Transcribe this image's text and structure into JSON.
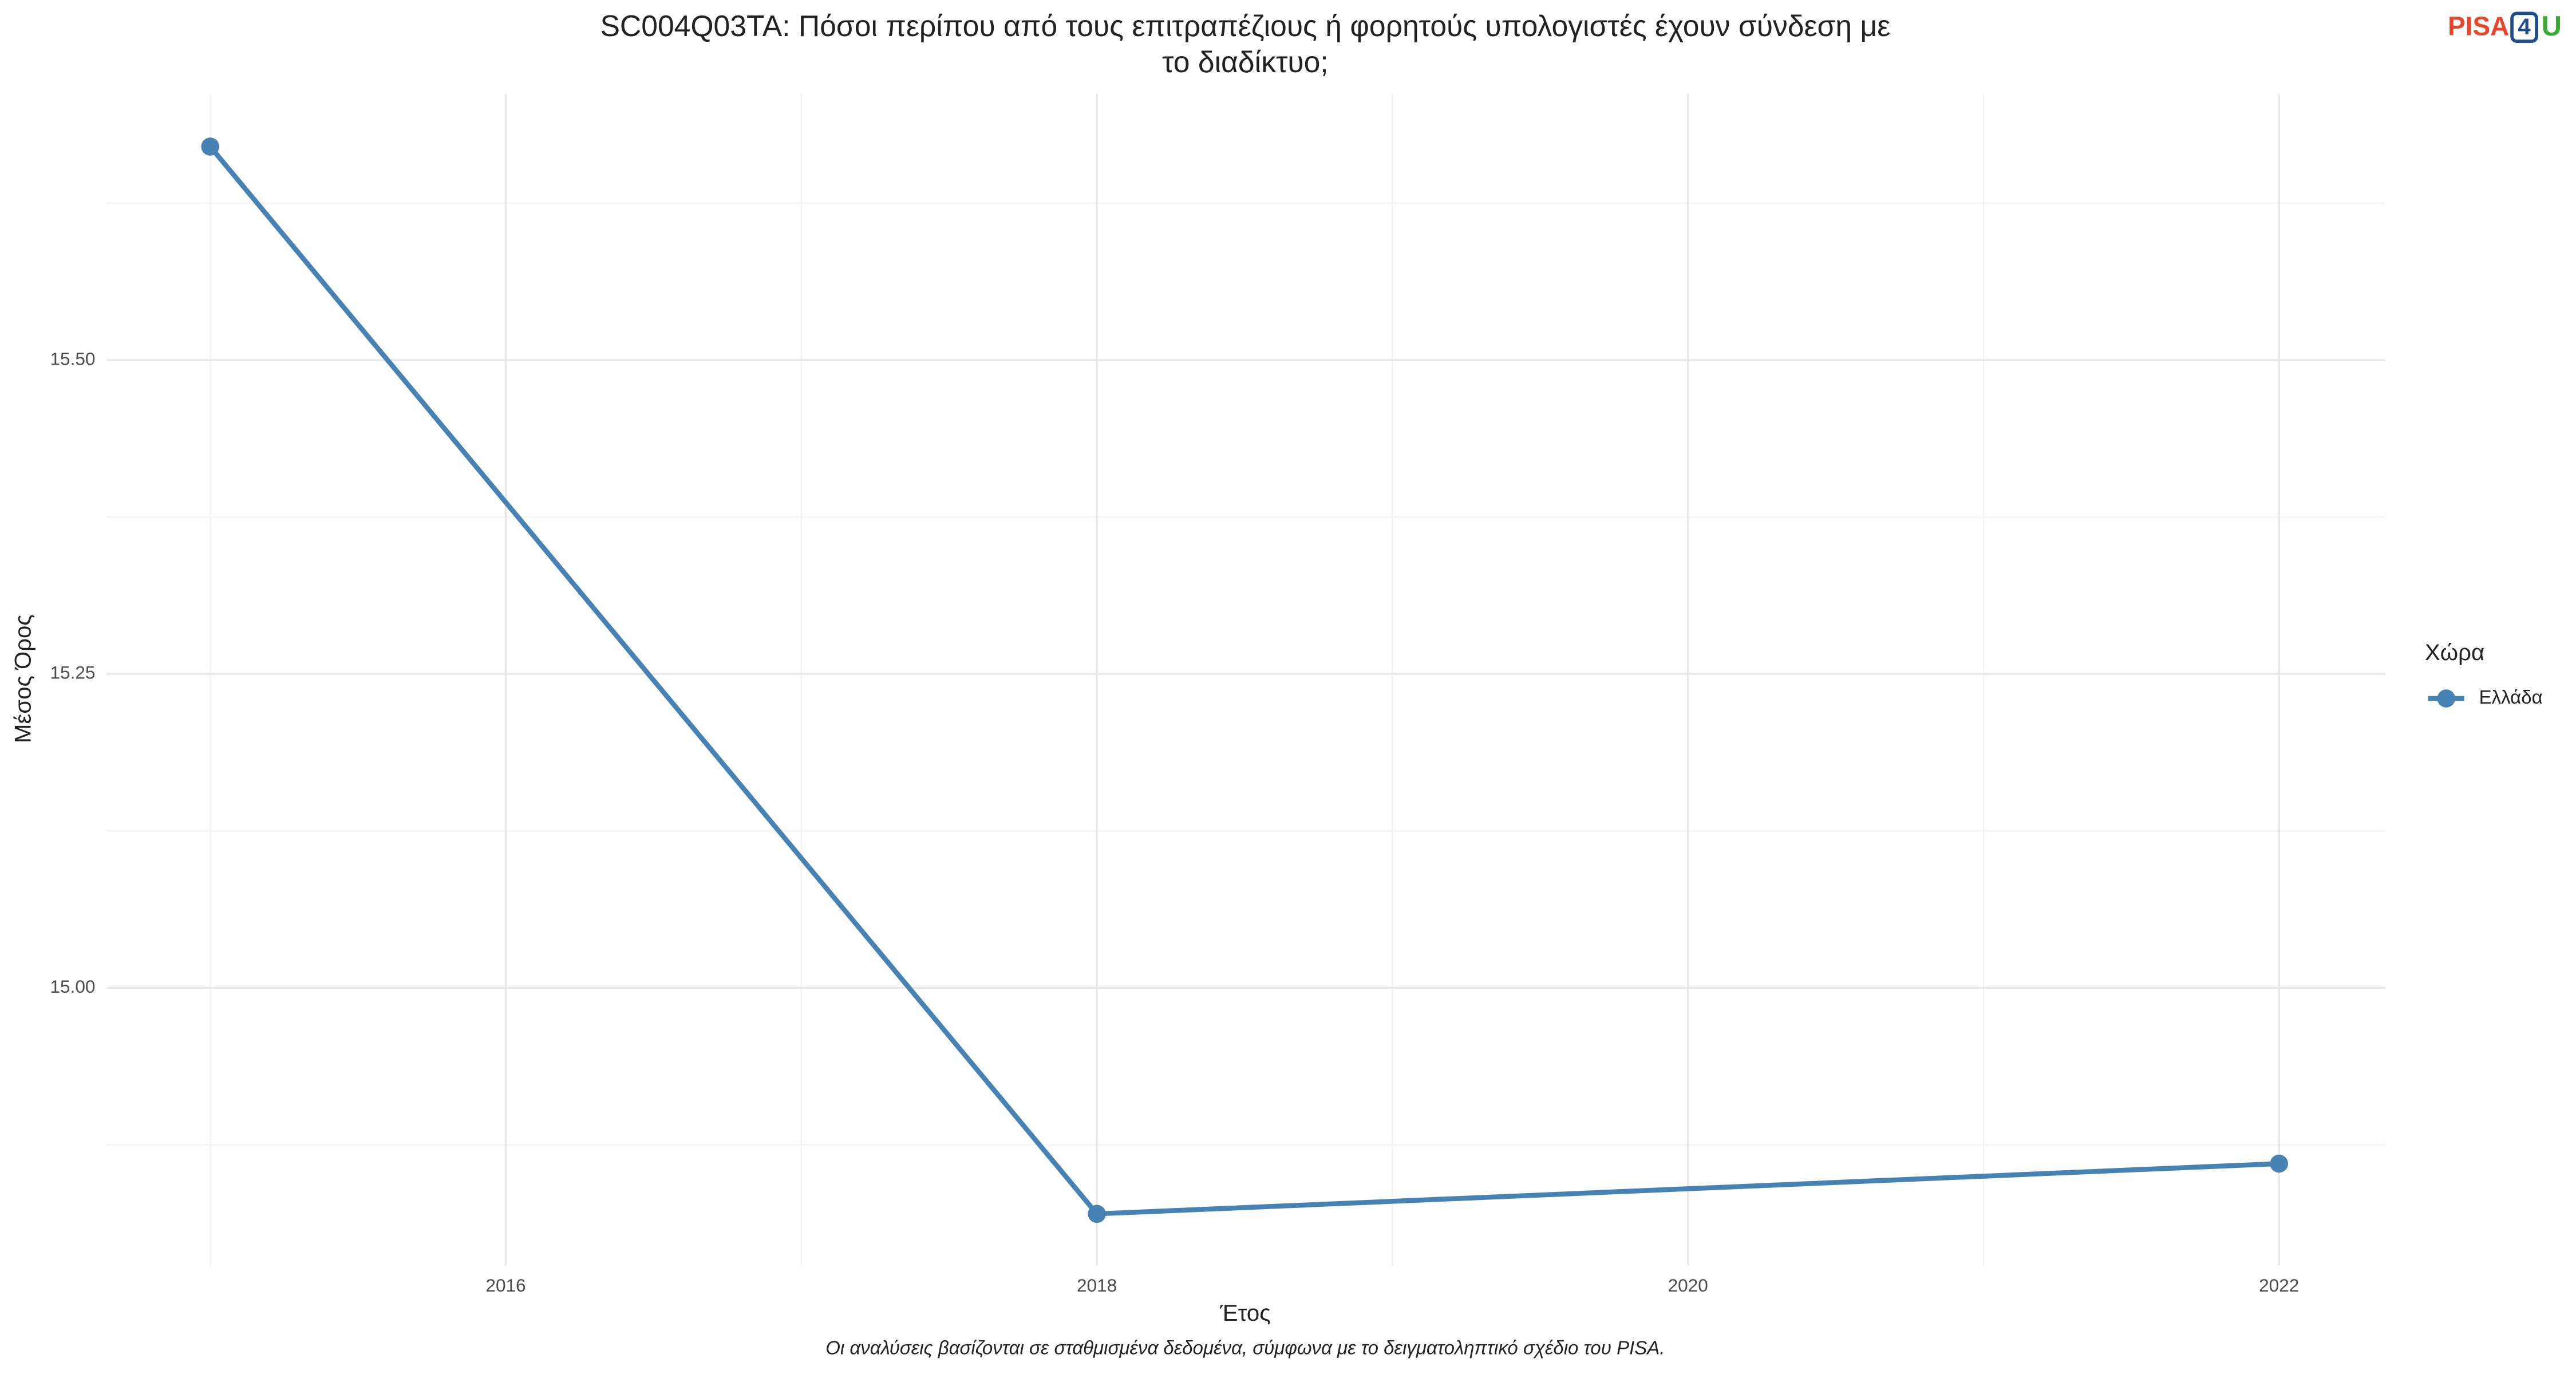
{
  "chart_data": {
    "type": "line",
    "title": [
      "SC004Q03TA: Πόσοι περίπου από τους επιτραπέζιους ή φορητούς υπολογιστές έχουν σύνδεση με",
      "το διαδίκτυο;"
    ],
    "x_label": "Έτος",
    "y_label": "Μέσος Όρος",
    "caption": "Οι αναλύσεις βασίζονται σε σταθμισμένα δεδομένα, σύμφωνα με το δειγματοληπτικό σχέδιο του PISA.",
    "legend_title": "Χώρα",
    "legend_position": "right",
    "x": [
      2015,
      2018,
      2022
    ],
    "series": [
      {
        "name": "Ελλάδα",
        "color": "#4682b4",
        "values": [
          15.67,
          14.82,
          14.86
        ]
      }
    ],
    "xlim": [
      2014.65,
      2022.36
    ],
    "xticks": [
      2016,
      2018,
      2020,
      2022
    ],
    "ylim": [
      14.779,
      15.712
    ],
    "yticks": [
      {
        "value": 15,
        "label": "15.00"
      },
      15.25,
      {
        "value": 15.5,
        "label": "15.50"
      }
    ],
    "grid": true
  },
  "logo": [
    "PISA",
    "4",
    "U"
  ]
}
